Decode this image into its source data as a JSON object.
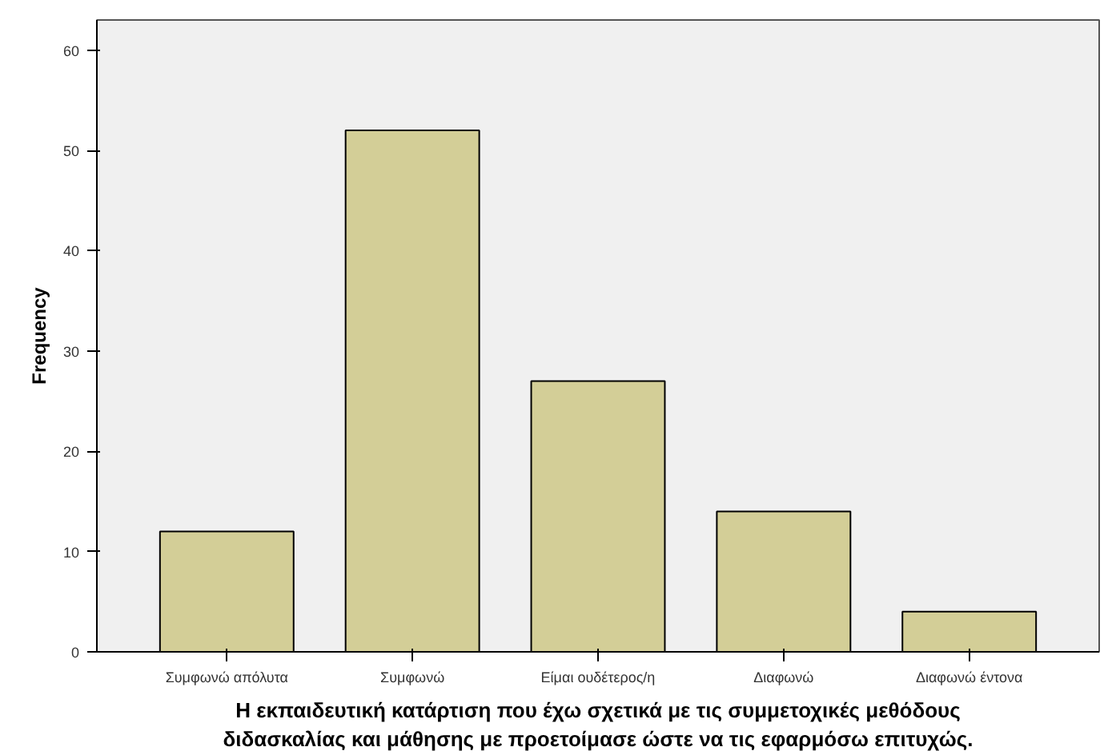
{
  "chart_data": {
    "type": "bar",
    "categories": [
      "Συμφωνώ απόλυτα",
      "Συμφωνώ",
      "Είμαι ουδέτερος/η",
      "Διαφωνώ",
      "Διαφωνώ έντονα"
    ],
    "values": [
      12,
      52,
      27,
      14,
      4
    ],
    "color": "#d3ce97",
    "xlabel": "Η εκπαιδευτική κατάρτιση που έχω σχετικά με τις συμμετοχικές μεθόδους\nδιδασκαλίας και μάθησης με προετοίμασε ώστε να τις εφαρμόσω επιτυχώς.",
    "ylabel": "Frequency",
    "ylim": [
      0,
      63
    ],
    "yticks": [
      0,
      10,
      20,
      30,
      40,
      50,
      60
    ],
    "grid": false
  }
}
